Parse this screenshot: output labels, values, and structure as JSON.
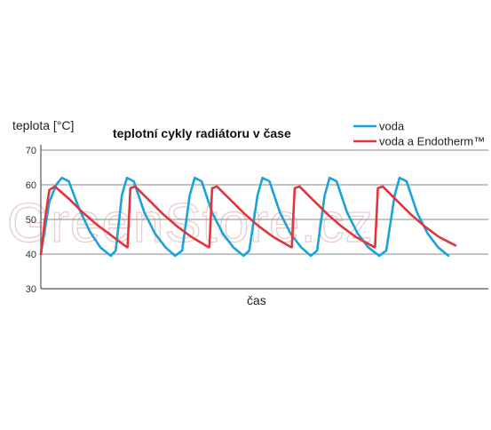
{
  "chart_data": {
    "type": "line",
    "title": "teplotní cykly radiátoru v čase",
    "ylabel": "teplota [°C]",
    "xlabel": "čas",
    "yticks": [
      "30",
      "40",
      "50",
      "60",
      "70"
    ],
    "ylim": [
      30,
      70
    ],
    "xlim": [
      0,
      64
    ],
    "grid": true,
    "legend_position": "top-right",
    "watermark": "GreenStore.cz",
    "series": [
      {
        "name": "voda",
        "color": "#1aa3db",
        "x": [
          0,
          1.2,
          2.2,
          3.0,
          4.0,
          5.5,
          7.0,
          8.5,
          10.0,
          10.7,
          11.6,
          12.3,
          13.3,
          14.8,
          16.3,
          17.8,
          19.2,
          20.2,
          21.3,
          22.0,
          23.0,
          24.5,
          26.0,
          27.5,
          29.0,
          29.8,
          31.0,
          31.7,
          32.7,
          34.2,
          35.7,
          37.2,
          38.6,
          39.5,
          40.6,
          41.3,
          42.3,
          43.8,
          45.3,
          46.8,
          48.4,
          49.4,
          50.6,
          51.3,
          52.3,
          53.8,
          55.3,
          56.8,
          58.3
        ],
        "values": [
          40,
          55,
          60,
          62,
          61,
          53,
          46.5,
          42,
          39.5,
          41,
          57,
          62,
          61,
          52,
          46,
          42,
          39.5,
          41,
          57,
          62,
          61,
          52,
          46,
          42,
          39.5,
          41,
          57,
          62,
          61,
          52,
          46,
          42,
          39.5,
          41,
          57,
          62,
          61,
          52,
          46,
          42,
          39.5,
          41,
          57,
          62,
          61,
          52,
          46,
          42,
          39.5
        ]
      },
      {
        "name": "voda a Endotherm™",
        "color": "#e0353c",
        "x": [
          0,
          0.6,
          1.2,
          2.0,
          4.0,
          6.0,
          8.0,
          10.0,
          12.3,
          12.4,
          12.8,
          13.5,
          15.5,
          17.5,
          19.5,
          21.5,
          24.0,
          24.1,
          24.5,
          25.2,
          27.2,
          29.2,
          31.2,
          33.2,
          35.8,
          35.9,
          36.3,
          37.0,
          39.0,
          41.0,
          43.0,
          45.0,
          47.7,
          47.8,
          48.2,
          48.9,
          50.9,
          52.9,
          54.9,
          56.9,
          59.3
        ],
        "values": [
          40,
          50,
          58.5,
          59.5,
          56,
          52,
          48.5,
          45.5,
          42,
          42,
          59,
          59.5,
          55.5,
          51.5,
          48,
          45,
          42,
          42,
          59,
          59.5,
          55.5,
          51.5,
          48,
          45,
          42,
          42,
          59,
          59.5,
          55.5,
          51.5,
          48,
          45,
          42,
          42,
          59,
          59.5,
          55.5,
          51.5,
          48,
          45,
          42.5
        ]
      }
    ]
  }
}
